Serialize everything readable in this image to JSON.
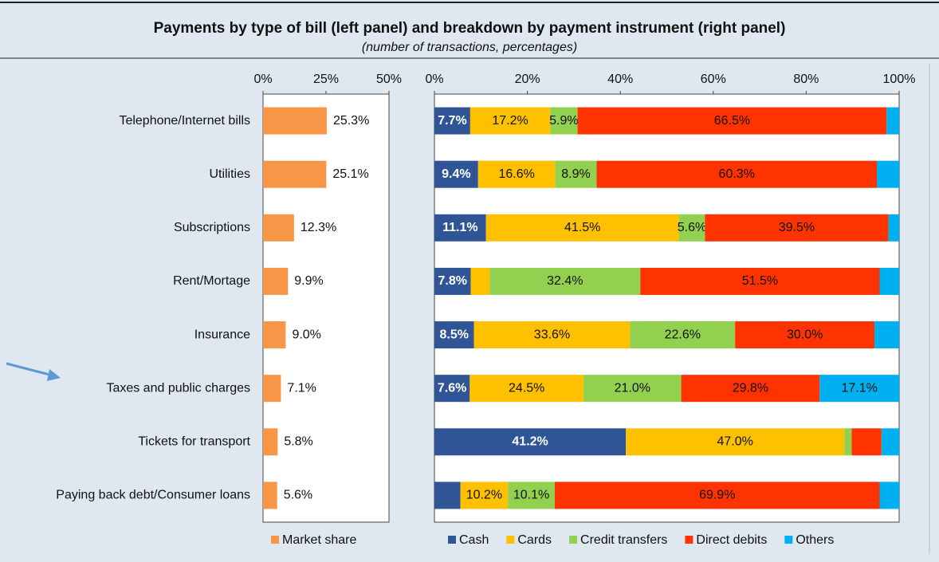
{
  "header": {
    "title": "Payments by type of bill (left panel) and breakdown by payment instrument (right panel)",
    "subtitle": "(number of transactions, percentages)"
  },
  "chart_data": [
    {
      "type": "bar",
      "orientation": "horizontal",
      "categories": [
        "Telephone/Internet bills",
        "Utilities",
        "Subscriptions",
        "Rent/Mortage",
        "Insurance",
        "Taxes and public charges",
        "Tickets for transport",
        "Paying back debt/Consumer loans"
      ],
      "series": [
        {
          "name": "Market share",
          "color": "#f79646",
          "values": [
            25.3,
            25.1,
            12.3,
            9.9,
            9.0,
            7.1,
            5.8,
            5.6
          ],
          "value_labels": [
            "25.3%",
            "25.1%",
            "12.3%",
            "9.9%",
            "9.0%",
            "7.1%",
            "5.8%",
            "5.6%"
          ]
        }
      ],
      "xlim": [
        0,
        50
      ],
      "xticks": [
        {
          "value": 0,
          "label": "0%"
        },
        {
          "value": 25,
          "label": "25%"
        },
        {
          "value": 50,
          "label": "50%"
        }
      ],
      "legend": "bottom"
    },
    {
      "type": "stacked_bar",
      "orientation": "horizontal",
      "series": [
        {
          "name": "Cash",
          "color": "#2f5597",
          "values": [
            7.7,
            9.4,
            11.1,
            7.8,
            8.5,
            7.6,
            41.2,
            5.6
          ],
          "value_labels": [
            "7.7%",
            "9.4%",
            "11.1%",
            "7.8%",
            "8.5%",
            "7.6%",
            "41.2%",
            null
          ]
        },
        {
          "name": "Cards",
          "color": "#ffc000",
          "values": [
            17.2,
            16.6,
            41.5,
            4.1,
            33.6,
            24.5,
            47.0,
            10.2
          ],
          "value_labels": [
            "17.2%",
            "16.6%",
            "41.5%",
            null,
            "33.6%",
            "24.5%",
            "47.0%",
            "10.2%"
          ]
        },
        {
          "name": "Credit transfers",
          "color": "#92d050",
          "values": [
            5.9,
            8.9,
            5.6,
            32.4,
            22.6,
            21.0,
            1.6,
            10.1
          ],
          "value_labels": [
            "5.9%",
            "8.9%",
            "5.6%",
            "32.4%",
            "22.6%",
            "21.0%",
            null,
            "10.1%"
          ]
        },
        {
          "name": "Direct debits",
          "color": "#ff3300",
          "values": [
            66.5,
            60.3,
            39.5,
            51.5,
            30.0,
            29.8,
            6.4,
            69.9
          ],
          "value_labels": [
            "66.5%",
            "60.3%",
            "39.5%",
            "51.5%",
            "30.0%",
            "29.8%",
            null,
            "69.9%"
          ]
        },
        {
          "name": "Others",
          "color": "#00b0f0",
          "values": [
            2.7,
            4.8,
            2.3,
            4.2,
            5.3,
            17.1,
            3.8,
            4.2
          ],
          "value_labels": [
            null,
            null,
            null,
            null,
            null,
            "17.1%",
            null,
            null
          ]
        }
      ],
      "xlim": [
        0,
        100
      ],
      "xticks": [
        {
          "value": 0,
          "label": "0%"
        },
        {
          "value": 20,
          "label": "20%"
        },
        {
          "value": 40,
          "label": "40%"
        },
        {
          "value": 60,
          "label": "60%"
        },
        {
          "value": 80,
          "label": "80%"
        },
        {
          "value": 100,
          "label": "100%"
        }
      ],
      "legend": "bottom"
    }
  ]
}
